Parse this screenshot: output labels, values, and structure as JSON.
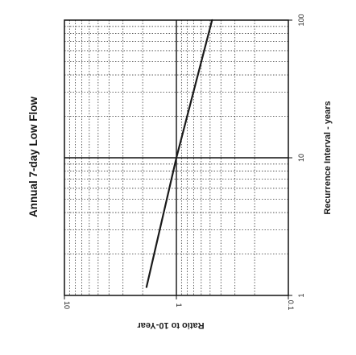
{
  "chart_data": {
    "type": "line",
    "title": "Annual 7-day Low Flow",
    "xlabel": "Recurrence Interval - years",
    "ylabel": "Ratio to 10-Year",
    "x_scale": "log",
    "y_scale": "log",
    "xlim": [
      1,
      100
    ],
    "ylim": [
      0.1,
      10
    ],
    "x_ticks": [
      "1",
      "10",
      "100"
    ],
    "y_ticks": [
      "10",
      "1",
      "0.1"
    ],
    "grid": true,
    "orientation": "page rotated 90 degrees clockwise",
    "series": [
      {
        "x": [
          1.15,
          10,
          100
        ],
        "y": [
          1.85,
          1.0,
          0.48
        ]
      }
    ],
    "colors": {
      "line": "#1a1a1a",
      "grid": "#3a3a3a",
      "frame": "#111111"
    }
  }
}
